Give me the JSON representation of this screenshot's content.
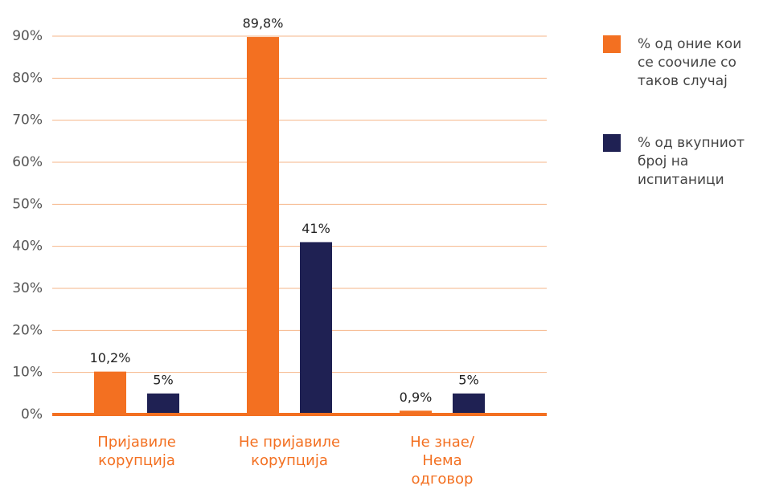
{
  "chart_data": {
    "type": "bar",
    "categories": [
      "Пријавиле\nкорупција",
      "Не пријавиле\nкорупција",
      "Не знае/\nНема\nодговор"
    ],
    "series": [
      {
        "name": "% од оние кои\nсе соочиле со\nтаков случај",
        "color": "#f37021",
        "values": [
          10.2,
          89.8,
          0.9
        ],
        "value_labels": [
          "10,2%",
          "89,8%",
          "0,9%"
        ]
      },
      {
        "name": "% од вкупниот\nброј на\nиспитаници",
        "color": "#1f2153",
        "values": [
          5,
          41,
          5
        ],
        "value_labels": [
          "5%",
          "41%",
          "5%"
        ]
      }
    ],
    "ylim": [
      0,
      90
    ],
    "yticks": [
      {
        "value": 0,
        "label": "0%"
      },
      {
        "value": 10,
        "label": "10%"
      },
      {
        "value": 20,
        "label": "20%"
      },
      {
        "value": 30,
        "label": "30%"
      },
      {
        "value": 40,
        "label": "40%"
      },
      {
        "value": 50,
        "label": "50%"
      },
      {
        "value": 60,
        "label": "60%"
      },
      {
        "value": 70,
        "label": "70%"
      },
      {
        "value": 80,
        "label": "80%"
      },
      {
        "value": 90,
        "label": "90%"
      }
    ],
    "grid": true,
    "legend": "right"
  }
}
